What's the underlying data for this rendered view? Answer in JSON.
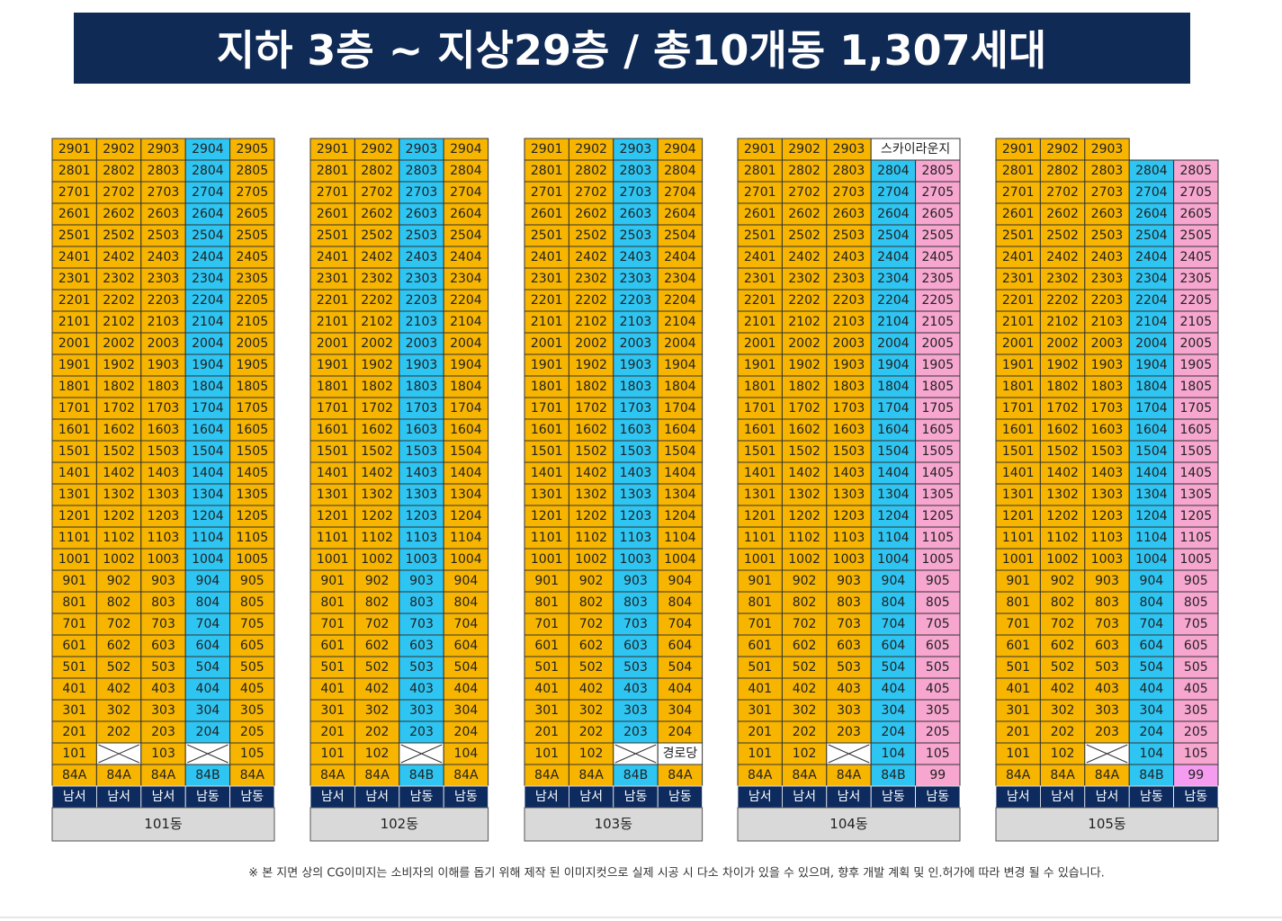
{
  "header": {
    "title": "지하 3층 ~ 지상29층 / 총10개동 1,307세대"
  },
  "buildings": [
    {
      "name": "101동",
      "colors": [
        "#f7b500",
        "#f7b500",
        "#f7b500",
        "#2ec5f2",
        "#f7b500"
      ],
      "rows": [
        [
          "2901",
          "2902",
          "2903",
          "2904",
          "2905"
        ],
        [
          "2801",
          "2802",
          "2803",
          "2804",
          "2805"
        ],
        [
          "2701",
          "2702",
          "2703",
          "2704",
          "2705"
        ],
        [
          "2601",
          "2602",
          "2603",
          "2604",
          "2605"
        ],
        [
          "2501",
          "2502",
          "2503",
          "2504",
          "2505"
        ],
        [
          "2401",
          "2402",
          "2403",
          "2404",
          "2405"
        ],
        [
          "2301",
          "2302",
          "2303",
          "2304",
          "2305"
        ],
        [
          "2201",
          "2202",
          "2203",
          "2204",
          "2205"
        ],
        [
          "2101",
          "2102",
          "2103",
          "2104",
          "2105"
        ],
        [
          "2001",
          "2002",
          "2003",
          "2004",
          "2005"
        ],
        [
          "1901",
          "1902",
          "1903",
          "1904",
          "1905"
        ],
        [
          "1801",
          "1802",
          "1803",
          "1804",
          "1805"
        ],
        [
          "1701",
          "1702",
          "1703",
          "1704",
          "1705"
        ],
        [
          "1601",
          "1602",
          "1603",
          "1604",
          "1605"
        ],
        [
          "1501",
          "1502",
          "1503",
          "1504",
          "1505"
        ],
        [
          "1401",
          "1402",
          "1403",
          "1404",
          "1405"
        ],
        [
          "1301",
          "1302",
          "1303",
          "1304",
          "1305"
        ],
        [
          "1201",
          "1202",
          "1203",
          "1204",
          "1205"
        ],
        [
          "1101",
          "1102",
          "1103",
          "1104",
          "1105"
        ],
        [
          "1001",
          "1002",
          "1003",
          "1004",
          "1005"
        ],
        [
          "901",
          "902",
          "903",
          "904",
          "905"
        ],
        [
          "801",
          "802",
          "803",
          "804",
          "805"
        ],
        [
          "701",
          "702",
          "703",
          "704",
          "705"
        ],
        [
          "601",
          "602",
          "603",
          "604",
          "605"
        ],
        [
          "501",
          "502",
          "503",
          "504",
          "505"
        ],
        [
          "401",
          "402",
          "403",
          "404",
          "405"
        ],
        [
          "301",
          "302",
          "303",
          "304",
          "305"
        ],
        [
          "201",
          "202",
          "203",
          "204",
          "205"
        ],
        [
          "101",
          null,
          "103",
          null,
          "105"
        ]
      ],
      "types": [
        "84A",
        "84A",
        "84A",
        "84B",
        "84A"
      ],
      "orientations": [
        "남서",
        "남서",
        "남서",
        "남동",
        "남동"
      ]
    },
    {
      "name": "102동",
      "colors": [
        "#f7b500",
        "#f7b500",
        "#2ec5f2",
        "#f7b500"
      ],
      "rows": [
        [
          "2901",
          "2902",
          "2903",
          "2904"
        ],
        [
          "2801",
          "2802",
          "2803",
          "2804"
        ],
        [
          "2701",
          "2702",
          "2703",
          "2704"
        ],
        [
          "2601",
          "2602",
          "2603",
          "2604"
        ],
        [
          "2501",
          "2502",
          "2503",
          "2504"
        ],
        [
          "2401",
          "2402",
          "2403",
          "2404"
        ],
        [
          "2301",
          "2302",
          "2303",
          "2304"
        ],
        [
          "2201",
          "2202",
          "2203",
          "2204"
        ],
        [
          "2101",
          "2102",
          "2103",
          "2104"
        ],
        [
          "2001",
          "2002",
          "2003",
          "2004"
        ],
        [
          "1901",
          "1902",
          "1903",
          "1904"
        ],
        [
          "1801",
          "1802",
          "1803",
          "1804"
        ],
        [
          "1701",
          "1702",
          "1703",
          "1704"
        ],
        [
          "1601",
          "1602",
          "1603",
          "1604"
        ],
        [
          "1501",
          "1502",
          "1503",
          "1504"
        ],
        [
          "1401",
          "1402",
          "1403",
          "1404"
        ],
        [
          "1301",
          "1302",
          "1303",
          "1304"
        ],
        [
          "1201",
          "1202",
          "1203",
          "1204"
        ],
        [
          "1101",
          "1102",
          "1103",
          "1104"
        ],
        [
          "1001",
          "1002",
          "1003",
          "1004"
        ],
        [
          "901",
          "902",
          "903",
          "904"
        ],
        [
          "801",
          "802",
          "803",
          "804"
        ],
        [
          "701",
          "702",
          "703",
          "704"
        ],
        [
          "601",
          "602",
          "603",
          "604"
        ],
        [
          "501",
          "502",
          "503",
          "504"
        ],
        [
          "401",
          "402",
          "403",
          "404"
        ],
        [
          "301",
          "302",
          "303",
          "304"
        ],
        [
          "201",
          "202",
          "203",
          "204"
        ],
        [
          "101",
          "102",
          null,
          "104"
        ]
      ],
      "types": [
        "84A",
        "84A",
        "84B",
        "84A"
      ],
      "orientations": [
        "남서",
        "남서",
        "남동",
        "남동"
      ]
    },
    {
      "name": "103동",
      "colors": [
        "#f7b500",
        "#f7b500",
        "#2ec5f2",
        "#f7b500"
      ],
      "rows": [
        [
          "2901",
          "2902",
          "2903",
          "2904"
        ],
        [
          "2801",
          "2802",
          "2803",
          "2804"
        ],
        [
          "2701",
          "2702",
          "2703",
          "2704"
        ],
        [
          "2601",
          "2602",
          "2603",
          "2604"
        ],
        [
          "2501",
          "2502",
          "2503",
          "2504"
        ],
        [
          "2401",
          "2402",
          "2403",
          "2404"
        ],
        [
          "2301",
          "2302",
          "2303",
          "2304"
        ],
        [
          "2201",
          "2202",
          "2203",
          "2204"
        ],
        [
          "2101",
          "2102",
          "2103",
          "2104"
        ],
        [
          "2001",
          "2002",
          "2003",
          "2004"
        ],
        [
          "1901",
          "1902",
          "1903",
          "1904"
        ],
        [
          "1801",
          "1802",
          "1803",
          "1804"
        ],
        [
          "1701",
          "1702",
          "1703",
          "1704"
        ],
        [
          "1601",
          "1602",
          "1603",
          "1604"
        ],
        [
          "1501",
          "1502",
          "1503",
          "1504"
        ],
        [
          "1401",
          "1402",
          "1403",
          "1404"
        ],
        [
          "1301",
          "1302",
          "1303",
          "1304"
        ],
        [
          "1201",
          "1202",
          "1203",
          "1204"
        ],
        [
          "1101",
          "1102",
          "1103",
          "1104"
        ],
        [
          "1001",
          "1002",
          "1003",
          "1004"
        ],
        [
          "901",
          "902",
          "903",
          "904"
        ],
        [
          "801",
          "802",
          "803",
          "804"
        ],
        [
          "701",
          "702",
          "703",
          "704"
        ],
        [
          "601",
          "602",
          "603",
          "604"
        ],
        [
          "501",
          "502",
          "503",
          "504"
        ],
        [
          "401",
          "402",
          "403",
          "404"
        ],
        [
          "301",
          "302",
          "303",
          "304"
        ],
        [
          "201",
          "202",
          "203",
          "204"
        ],
        [
          "101",
          "102",
          null,
          "경로당"
        ]
      ],
      "types": [
        "84A",
        "84A",
        "84B",
        "84A"
      ],
      "orientations": [
        "남서",
        "남서",
        "남동",
        "남동"
      ]
    },
    {
      "name": "104동",
      "colors": [
        "#f7b500",
        "#f7b500",
        "#f7b500",
        "#2ec5f2",
        "#f7a6cf"
      ],
      "rows": [
        [
          "2901",
          "2902",
          "2903",
          "스카이라운지"
        ],
        [
          "2801",
          "2802",
          "2803",
          "2804",
          "2805"
        ],
        [
          "2701",
          "2702",
          "2703",
          "2704",
          "2705"
        ],
        [
          "2601",
          "2602",
          "2603",
          "2604",
          "2605"
        ],
        [
          "2501",
          "2502",
          "2503",
          "2504",
          "2505"
        ],
        [
          "2401",
          "2402",
          "2403",
          "2404",
          "2405"
        ],
        [
          "2301",
          "2302",
          "2303",
          "2304",
          "2305"
        ],
        [
          "2201",
          "2202",
          "2203",
          "2204",
          "2205"
        ],
        [
          "2101",
          "2102",
          "2103",
          "2104",
          "2105"
        ],
        [
          "2001",
          "2002",
          "2003",
          "2004",
          "2005"
        ],
        [
          "1901",
          "1902",
          "1903",
          "1904",
          "1905"
        ],
        [
          "1801",
          "1802",
          "1803",
          "1804",
          "1805"
        ],
        [
          "1701",
          "1702",
          "1703",
          "1704",
          "1705"
        ],
        [
          "1601",
          "1602",
          "1603",
          "1604",
          "1605"
        ],
        [
          "1501",
          "1502",
          "1503",
          "1504",
          "1505"
        ],
        [
          "1401",
          "1402",
          "1403",
          "1404",
          "1405"
        ],
        [
          "1301",
          "1302",
          "1303",
          "1304",
          "1305"
        ],
        [
          "1201",
          "1202",
          "1203",
          "1204",
          "1205"
        ],
        [
          "1101",
          "1102",
          "1103",
          "1104",
          "1105"
        ],
        [
          "1001",
          "1002",
          "1003",
          "1004",
          "1005"
        ],
        [
          "901",
          "902",
          "903",
          "904",
          "905"
        ],
        [
          "801",
          "802",
          "803",
          "804",
          "805"
        ],
        [
          "701",
          "702",
          "703",
          "704",
          "705"
        ],
        [
          "601",
          "602",
          "603",
          "604",
          "605"
        ],
        [
          "501",
          "502",
          "503",
          "504",
          "505"
        ],
        [
          "401",
          "402",
          "403",
          "404",
          "405"
        ],
        [
          "301",
          "302",
          "303",
          "304",
          "305"
        ],
        [
          "201",
          "202",
          "203",
          "204",
          "205"
        ],
        [
          "101",
          "102",
          null,
          "104",
          "105"
        ]
      ],
      "types": [
        "84A",
        "84A",
        "84A",
        "84B",
        "99"
      ],
      "orientations": [
        "남서",
        "남서",
        "남서",
        "남동",
        "남동"
      ]
    },
    {
      "name": "105동",
      "colors": [
        "#f7b500",
        "#f7b500",
        "#f7b500",
        "#2ec5f2",
        "#f7a6cf"
      ],
      "type_colors": [
        "#f7b500",
        "#f7b500",
        "#f7b500",
        "#2ec5f2",
        "#f59cf0"
      ],
      "rows": [
        [
          "2901",
          "2902",
          "2903"
        ],
        [
          "2801",
          "2802",
          "2803",
          "2804",
          "2805"
        ],
        [
          "2701",
          "2702",
          "2703",
          "2704",
          "2705"
        ],
        [
          "2601",
          "2602",
          "2603",
          "2604",
          "2605"
        ],
        [
          "2501",
          "2502",
          "2503",
          "2504",
          "2505"
        ],
        [
          "2401",
          "2402",
          "2403",
          "2404",
          "2405"
        ],
        [
          "2301",
          "2302",
          "2303",
          "2304",
          "2305"
        ],
        [
          "2201",
          "2202",
          "2203",
          "2204",
          "2205"
        ],
        [
          "2101",
          "2102",
          "2103",
          "2104",
          "2105"
        ],
        [
          "2001",
          "2002",
          "2003",
          "2004",
          "2005"
        ],
        [
          "1901",
          "1902",
          "1903",
          "1904",
          "1905"
        ],
        [
          "1801",
          "1802",
          "1803",
          "1804",
          "1805"
        ],
        [
          "1701",
          "1702",
          "1703",
          "1704",
          "1705"
        ],
        [
          "1601",
          "1602",
          "1603",
          "1604",
          "1605"
        ],
        [
          "1501",
          "1502",
          "1503",
          "1504",
          "1505"
        ],
        [
          "1401",
          "1402",
          "1403",
          "1404",
          "1405"
        ],
        [
          "1301",
          "1302",
          "1303",
          "1304",
          "1305"
        ],
        [
          "1201",
          "1202",
          "1203",
          "1204",
          "1205"
        ],
        [
          "1101",
          "1102",
          "1103",
          "1104",
          "1105"
        ],
        [
          "1001",
          "1002",
          "1003",
          "1004",
          "1005"
        ],
        [
          "901",
          "902",
          "903",
          "904",
          "905"
        ],
        [
          "801",
          "802",
          "803",
          "804",
          "805"
        ],
        [
          "701",
          "702",
          "703",
          "704",
          "705"
        ],
        [
          "601",
          "602",
          "603",
          "604",
          "605"
        ],
        [
          "501",
          "502",
          "503",
          "504",
          "505"
        ],
        [
          "401",
          "402",
          "403",
          "404",
          "405"
        ],
        [
          "301",
          "302",
          "303",
          "304",
          "305"
        ],
        [
          "201",
          "202",
          "203",
          "204",
          "205"
        ],
        [
          "101",
          "102",
          null,
          "104",
          "105"
        ]
      ],
      "types": [
        "84A",
        "84A",
        "84A",
        "84B",
        "99"
      ],
      "orientations": [
        "남서",
        "남서",
        "남서",
        "남동",
        "남동"
      ]
    }
  ],
  "footnote": "※ 본 지면 상의 CG이미지는 소비자의 이해를 돕기 위해 제작 된 이미지컷으로 실제 시공 시 다소 차이가 있을 수 있으며, 향후 개발 계획 및 인.허가에 따라 변경 될 수 있습니다."
}
